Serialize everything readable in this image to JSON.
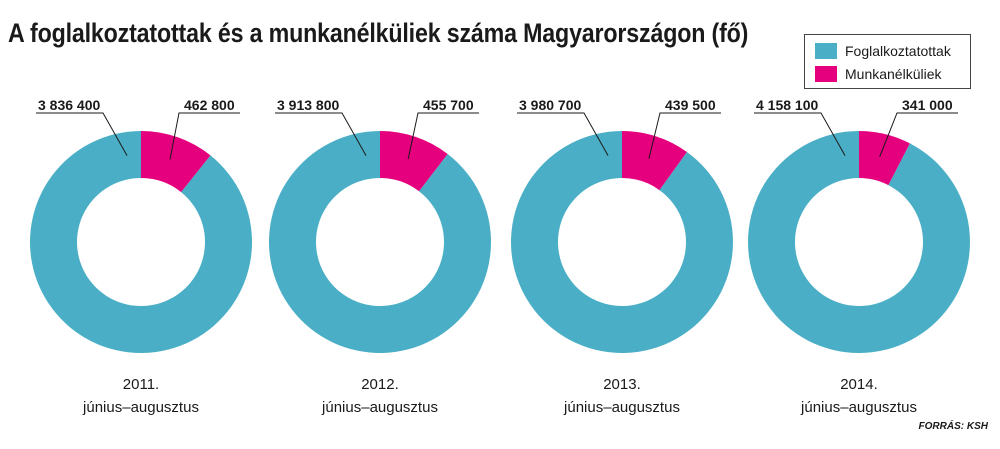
{
  "title": "A foglalkoztatottak és a munkanélküliek száma Magyarországon (fő)",
  "source": "FORRÁS: KSH",
  "colors": {
    "employed": "#4aafc6",
    "unemployed": "#e5007d"
  },
  "chart_data": {
    "type": "pie",
    "title": "A foglalkoztatottak és a munkanélküliek száma Magyarországon (fő)",
    "legend": [
      "Foglalkoztatottak",
      "Munkanélküliek"
    ],
    "legend_placement": "top-right",
    "charts": [
      {
        "year": "2011.",
        "period": "június–augusztus",
        "employed": 3836400,
        "unemployed": 462800,
        "employed_label": "3 836 400",
        "unemployed_label": "462 800"
      },
      {
        "year": "2012.",
        "period": "június–augusztus",
        "employed": 3913800,
        "unemployed": 455700,
        "employed_label": "3 913 800",
        "unemployed_label": "455 700"
      },
      {
        "year": "2013.",
        "period": "június–augusztus",
        "employed": 3980700,
        "unemployed": 439500,
        "employed_label": "3 980 700",
        "unemployed_label": "439 500"
      },
      {
        "year": "2014.",
        "period": "június–augusztus",
        "employed": 4158100,
        "unemployed": 341000,
        "employed_label": "4 158 100",
        "unemployed_label": "341 000"
      }
    ]
  }
}
